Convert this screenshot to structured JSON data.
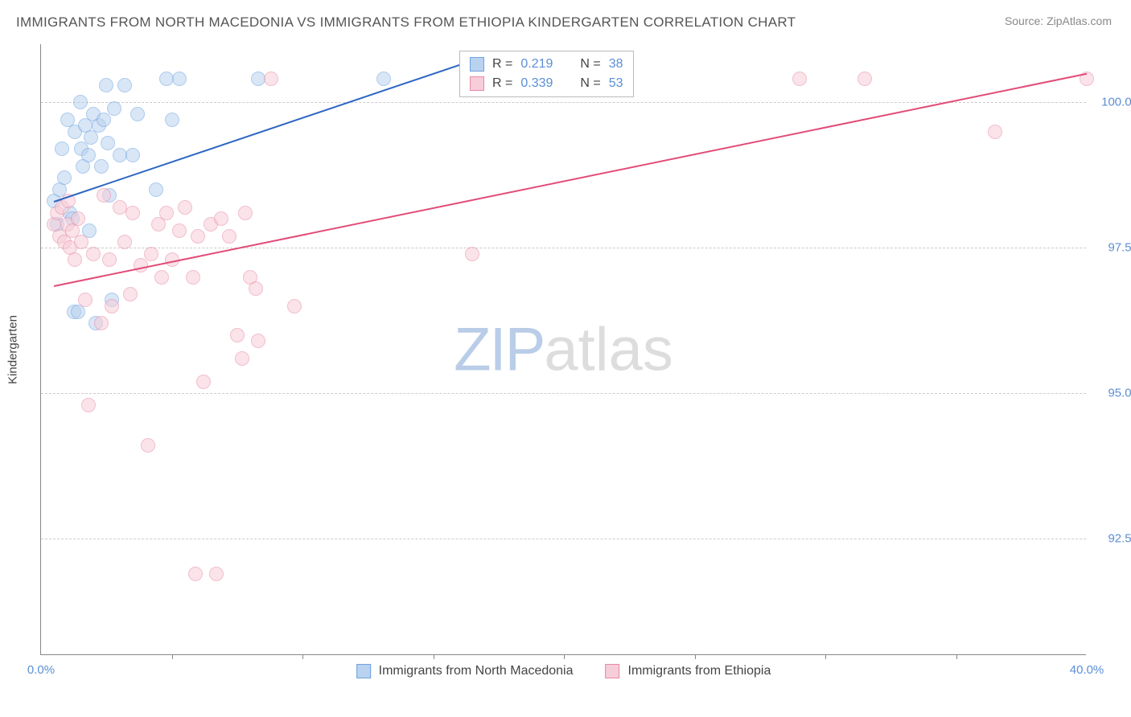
{
  "title": "IMMIGRANTS FROM NORTH MACEDONIA VS IMMIGRANTS FROM ETHIOPIA KINDERGARTEN CORRELATION CHART",
  "source_prefix": "Source: ",
  "source_link": "ZipAtlas.com",
  "ylabel": "Kindergarten",
  "watermark_a": "ZIP",
  "watermark_b": "atlas",
  "chart": {
    "type": "scatter",
    "xlim": [
      0,
      40
    ],
    "ylim": [
      90.5,
      101.0
    ],
    "yticks": [
      92.5,
      95.0,
      97.5,
      100.0
    ],
    "ytick_labels": [
      "92.5%",
      "95.0%",
      "97.5%",
      "100.0%"
    ],
    "xticks_marks": [
      5,
      10,
      15,
      20,
      25,
      30,
      35
    ],
    "xticks_labels": [
      {
        "x": 0,
        "label": "0.0%"
      },
      {
        "x": 40,
        "label": "40.0%"
      }
    ],
    "grid_color": "#cccccc",
    "background_color": "#ffffff",
    "marker_radius": 9,
    "marker_stroke_width": 1.5,
    "line_width": 2
  },
  "series": [
    {
      "name": "Immigrants from North Macedonia",
      "fill": "#b9d2f0",
      "stroke": "#6fa2e0",
      "line_color": "#2d66c2",
      "fill_opacity": 0.55,
      "R_label": "R = ",
      "R": "0.219",
      "N_label": "N = ",
      "N": "38",
      "trend": {
        "x1": 0.5,
        "y1": 98.3,
        "x2": 17.0,
        "y2": 100.8
      },
      "points": [
        [
          0.5,
          98.3
        ],
        [
          0.6,
          97.9
        ],
        [
          0.7,
          98.5
        ],
        [
          0.8,
          99.2
        ],
        [
          0.9,
          98.7
        ],
        [
          1.0,
          99.7
        ],
        [
          1.1,
          98.1
        ],
        [
          1.2,
          98.0
        ],
        [
          1.25,
          96.4
        ],
        [
          1.3,
          99.5
        ],
        [
          1.4,
          96.4
        ],
        [
          1.5,
          100.0
        ],
        [
          1.55,
          99.2
        ],
        [
          1.6,
          98.9
        ],
        [
          1.7,
          99.6
        ],
        [
          1.8,
          99.1
        ],
        [
          1.85,
          97.8
        ],
        [
          1.9,
          99.4
        ],
        [
          2.0,
          99.8
        ],
        [
          2.1,
          96.2
        ],
        [
          2.2,
          99.6
        ],
        [
          2.3,
          98.9
        ],
        [
          2.4,
          99.7
        ],
        [
          2.5,
          100.3
        ],
        [
          2.55,
          99.3
        ],
        [
          2.6,
          98.4
        ],
        [
          2.7,
          96.6
        ],
        [
          2.8,
          99.9
        ],
        [
          3.0,
          99.1
        ],
        [
          3.2,
          100.3
        ],
        [
          3.5,
          99.1
        ],
        [
          3.7,
          99.8
        ],
        [
          4.4,
          98.5
        ],
        [
          4.8,
          100.4
        ],
        [
          5.0,
          99.7
        ],
        [
          5.3,
          100.4
        ],
        [
          8.3,
          100.4
        ],
        [
          13.1,
          100.4
        ]
      ]
    },
    {
      "name": "Immigrants from Ethiopia",
      "fill": "#f6cdd8",
      "stroke": "#e88aa4",
      "line_color": "#e24b77",
      "fill_opacity": 0.55,
      "R_label": "R = ",
      "R": "0.339",
      "N_label": "N = ",
      "N": "53",
      "trend": {
        "x1": 0.5,
        "y1": 96.85,
        "x2": 40.0,
        "y2": 100.5
      },
      "points": [
        [
          0.5,
          97.9
        ],
        [
          0.6,
          98.1
        ],
        [
          0.7,
          97.7
        ],
        [
          0.8,
          98.2
        ],
        [
          0.9,
          97.6
        ],
        [
          1.0,
          97.9
        ],
        [
          1.05,
          98.3
        ],
        [
          1.1,
          97.5
        ],
        [
          1.2,
          97.8
        ],
        [
          1.3,
          97.3
        ],
        [
          1.4,
          98.0
        ],
        [
          1.55,
          97.6
        ],
        [
          1.7,
          96.6
        ],
        [
          1.8,
          94.8
        ],
        [
          2.0,
          97.4
        ],
        [
          2.3,
          96.2
        ],
        [
          2.4,
          98.4
        ],
        [
          2.6,
          97.3
        ],
        [
          2.7,
          96.5
        ],
        [
          3.0,
          98.2
        ],
        [
          3.2,
          97.6
        ],
        [
          3.4,
          96.7
        ],
        [
          3.5,
          98.1
        ],
        [
          3.8,
          97.2
        ],
        [
          4.1,
          94.1
        ],
        [
          4.2,
          97.4
        ],
        [
          4.5,
          97.9
        ],
        [
          4.6,
          97.0
        ],
        [
          4.8,
          98.1
        ],
        [
          5.0,
          97.3
        ],
        [
          5.3,
          97.8
        ],
        [
          5.5,
          98.2
        ],
        [
          5.8,
          97.0
        ],
        [
          5.9,
          91.9
        ],
        [
          6.0,
          97.7
        ],
        [
          6.2,
          95.2
        ],
        [
          6.5,
          97.9
        ],
        [
          6.7,
          91.9
        ],
        [
          6.9,
          98.0
        ],
        [
          7.2,
          97.7
        ],
        [
          7.5,
          96.0
        ],
        [
          7.7,
          95.6
        ],
        [
          7.8,
          98.1
        ],
        [
          8.0,
          97.0
        ],
        [
          8.2,
          96.8
        ],
        [
          8.3,
          95.9
        ],
        [
          8.8,
          100.4
        ],
        [
          9.7,
          96.5
        ],
        [
          16.5,
          97.4
        ],
        [
          29.0,
          100.4
        ],
        [
          31.5,
          100.4
        ],
        [
          36.5,
          99.5
        ],
        [
          40.0,
          100.4
        ]
      ]
    }
  ]
}
